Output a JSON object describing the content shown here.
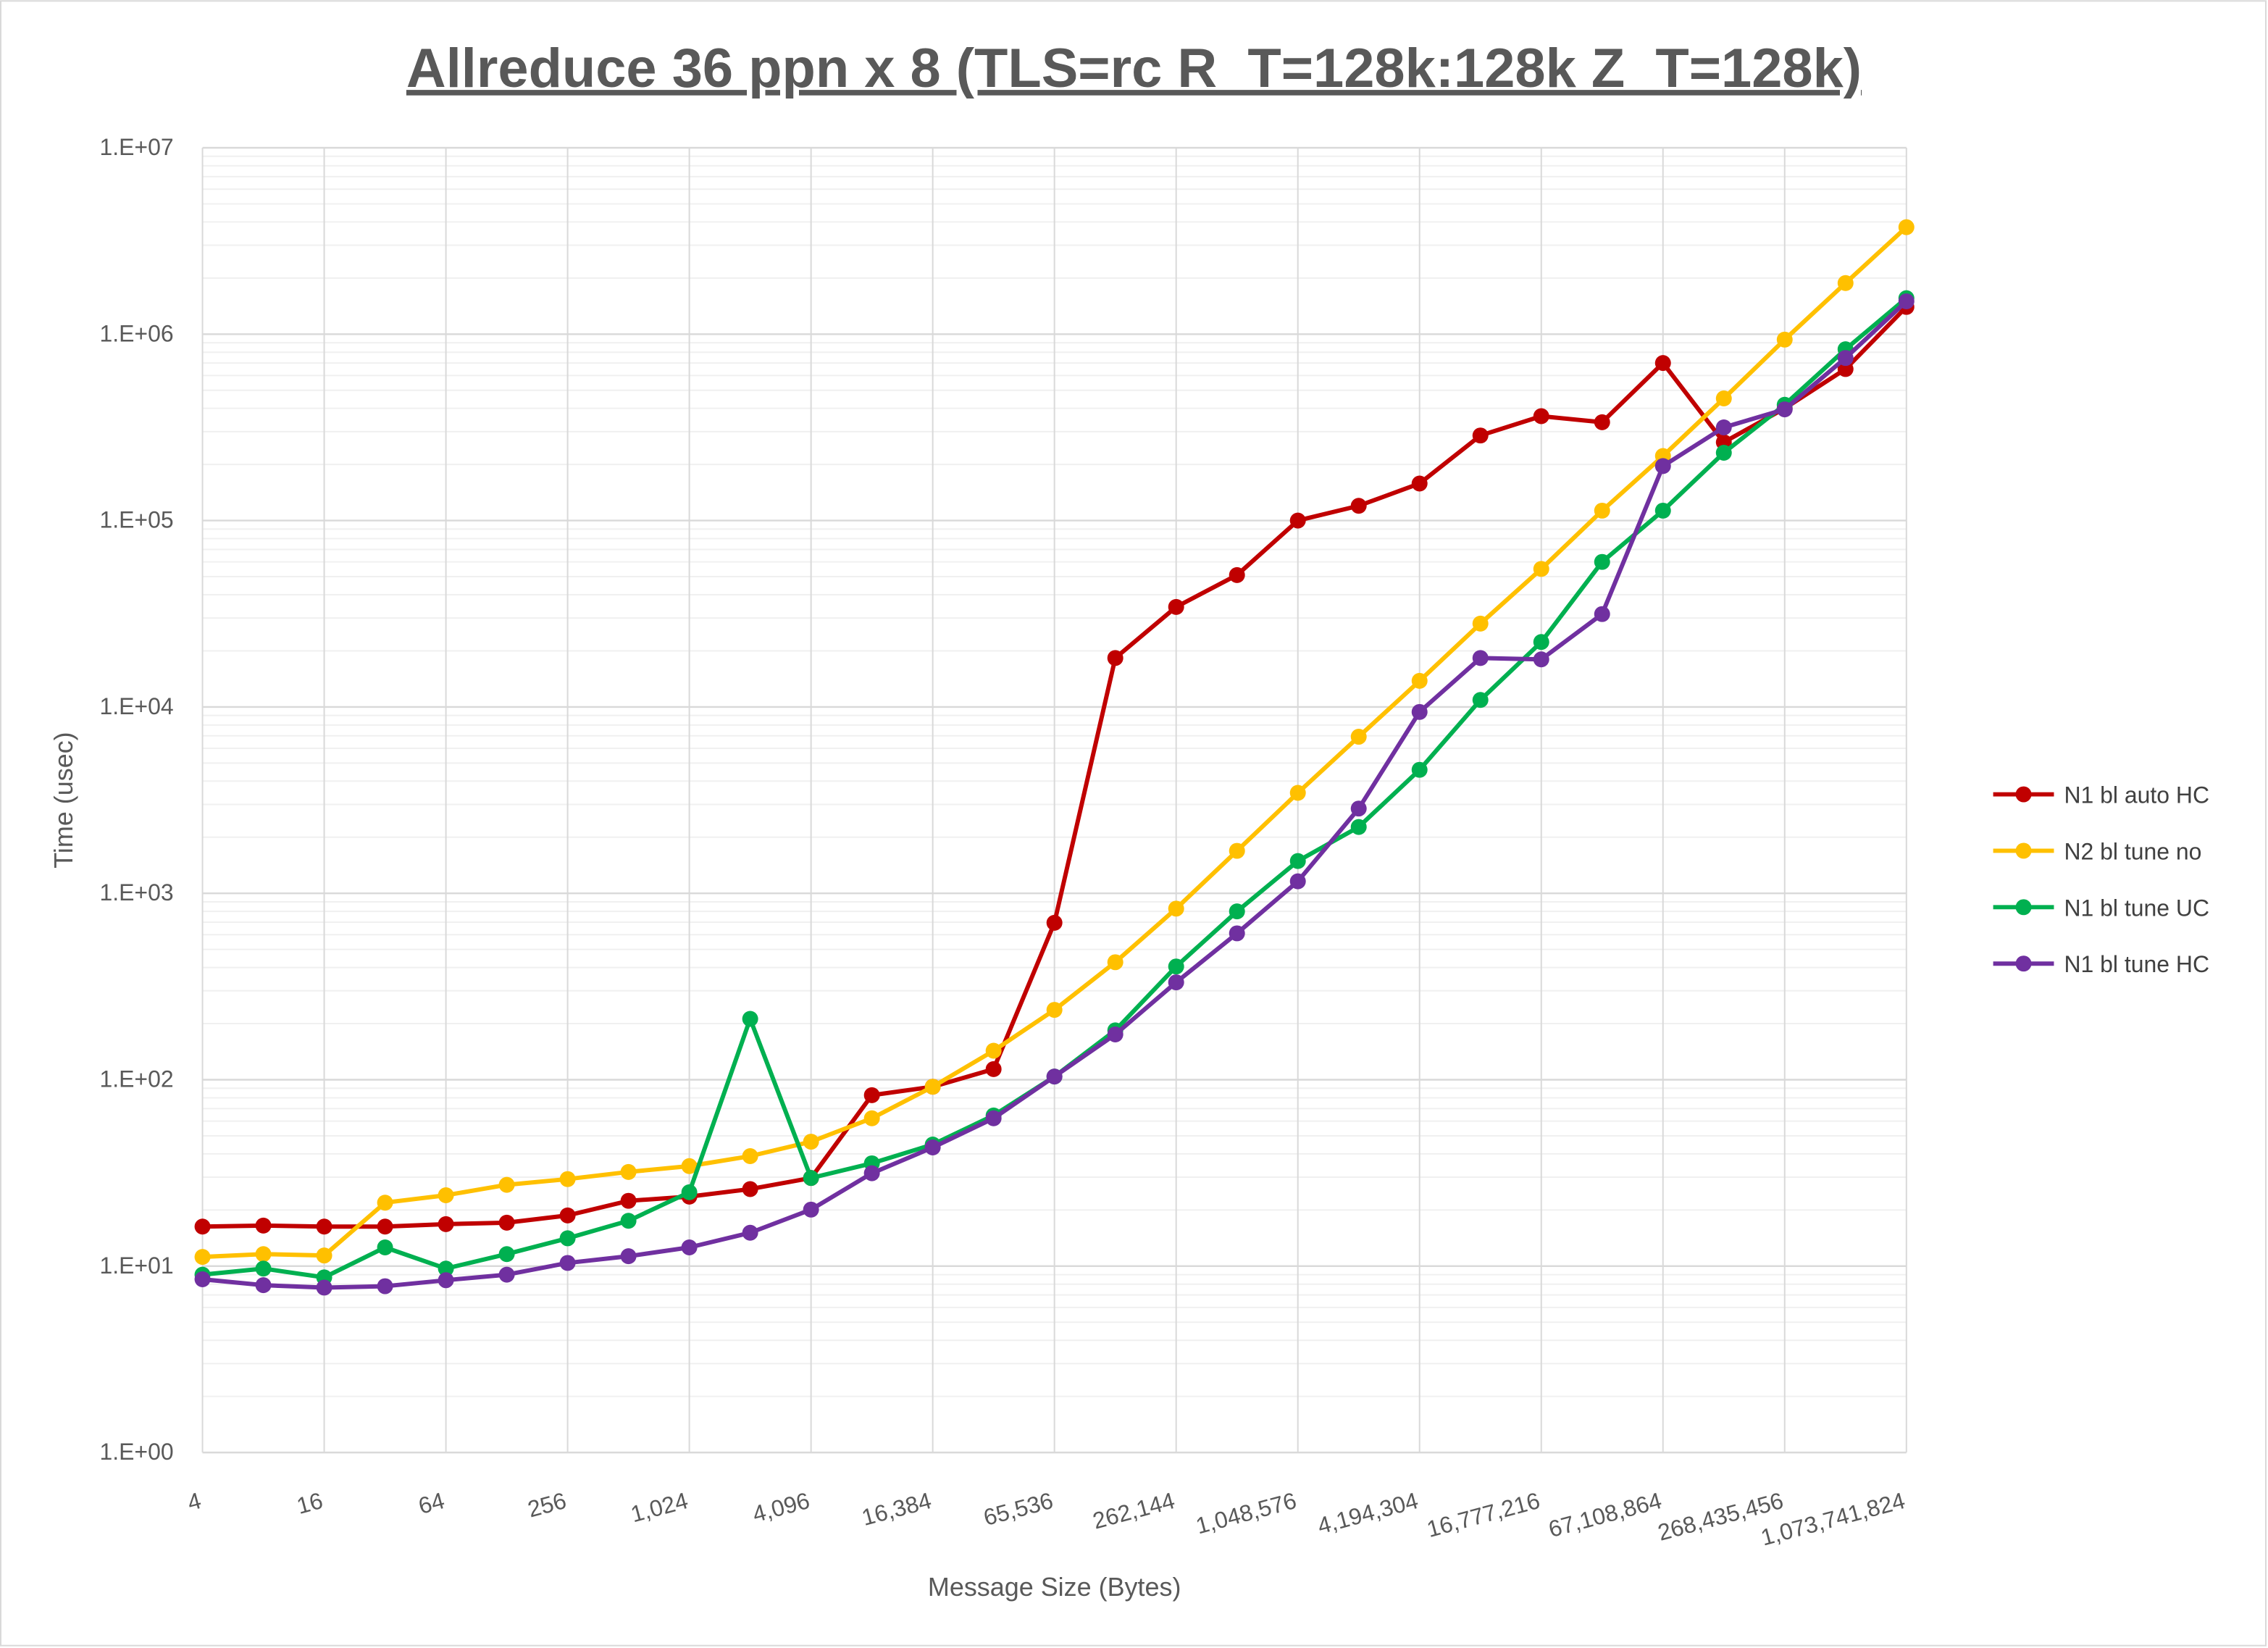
{
  "chart_data": {
    "type": "line",
    "title": "Allreduce 36 ppn x 8 (TLS=rc R_T=128k:128k Z_T=128k)",
    "xlabel": "Message Size (Bytes)",
    "ylabel": "Time (usec)",
    "x_scale": "log2",
    "y_scale": "log10",
    "ylim": [
      1,
      10000000
    ],
    "y_tick_labels": [
      "1.E+00",
      "1.E+01",
      "1.E+02",
      "1.E+03",
      "1.E+04",
      "1.E+05",
      "1.E+06",
      "1.E+07"
    ],
    "x_tick_labels": [
      "4",
      "16",
      "64",
      "256",
      "1,024",
      "4,096",
      "16,384",
      "65,536",
      "262,144",
      "1,048,576",
      "4,194,304",
      "16,777,216",
      "67,108,864",
      "268,435,456",
      "1,073,741,824"
    ],
    "x": [
      4,
      8,
      16,
      32,
      64,
      128,
      256,
      512,
      1024,
      2048,
      4096,
      8192,
      16384,
      32768,
      65536,
      131072,
      262144,
      524288,
      1048576,
      2097152,
      4194304,
      8388608,
      16777216,
      33554432,
      67108864,
      134217728,
      268435456,
      536870912,
      1073741824
    ],
    "grid": true,
    "legend_position": "right",
    "series": [
      {
        "name": "N1 bl auto HC",
        "color": "#C00000",
        "values": [
          16.3,
          16.5,
          16.3,
          16.3,
          16.8,
          17.1,
          18.7,
          22.4,
          23.6,
          25.9,
          29.7,
          82.6,
          91.7,
          114,
          695,
          18300,
          34400,
          51000,
          100000,
          120000,
          158000,
          286000,
          363000,
          337000,
          700000,
          263000,
          400000,
          650000,
          1400000
        ]
      },
      {
        "name": "N2 bl tune no",
        "color": "#FFC000",
        "values": [
          11.2,
          11.6,
          11.4,
          21.9,
          24.0,
          27.3,
          29.3,
          32.0,
          34.4,
          38.9,
          46.5,
          62.1,
          91.7,
          143,
          237,
          427,
          828,
          1690,
          3460,
          6920,
          13800,
          28000,
          55000,
          113000,
          222000,
          452000,
          935000,
          1880000,
          3750000
        ]
      },
      {
        "name": "N1 bl tune UC",
        "color": "#00B050",
        "values": [
          9.0,
          9.7,
          8.7,
          12.6,
          9.7,
          11.6,
          14.1,
          17.5,
          24.9,
          212,
          29.7,
          35.6,
          44.9,
          64.3,
          104,
          184,
          405,
          800,
          1490,
          2270,
          4600,
          10900,
          22300,
          60000,
          113000,
          231000,
          418000,
          830000,
          1560000
        ]
      },
      {
        "name": "N1 bl tune HC",
        "color": "#7030A0",
        "values": [
          8.5,
          7.9,
          7.67,
          7.8,
          8.4,
          9.0,
          10.4,
          11.3,
          12.6,
          15.1,
          20.1,
          31.5,
          43.3,
          62.1,
          104,
          175,
          333,
          610,
          1160,
          2850,
          9400,
          18300,
          18000,
          31500,
          196000,
          316000,
          395000,
          745000,
          1500000
        ]
      }
    ]
  }
}
